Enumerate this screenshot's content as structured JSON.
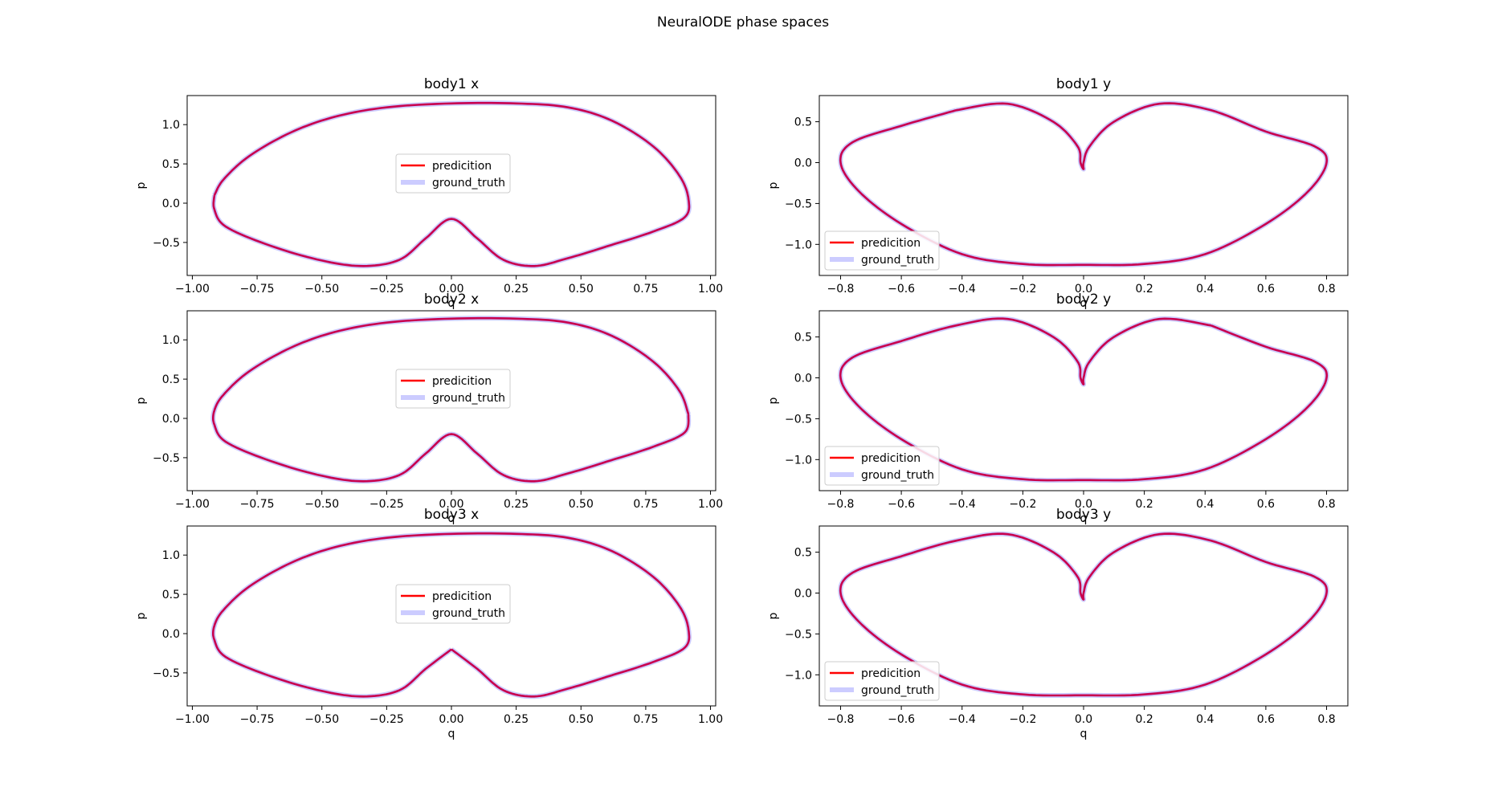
{
  "figure_title": "NeuralODE phase spaces",
  "colors": {
    "prediction": "#ff0000",
    "ground_truth": "#7f7fff",
    "overlap": "#c8004e"
  },
  "chart_data": [
    {
      "type": "line",
      "kind": "x",
      "title": "body1 x",
      "xlabel": "q",
      "ylabel": "p",
      "xlim": [
        -1.02,
        1.02
      ],
      "ylim": [
        -0.92,
        1.37
      ],
      "xticks": [
        -1.0,
        -0.75,
        -0.5,
        -0.25,
        0.0,
        0.25,
        0.5,
        0.75,
        1.0
      ],
      "xtick_labels": [
        "−1.00",
        "−0.75",
        "−0.50",
        "−0.25",
        "0.00",
        "0.25",
        "0.50",
        "0.75",
        "1.00"
      ],
      "yticks": [
        -0.5,
        0.0,
        0.5,
        1.0
      ],
      "ytick_labels": [
        "−0.5",
        "0.0",
        "0.5",
        "1.0"
      ],
      "legend": {
        "location": "center",
        "entries": [
          "predicition",
          "ground_truth"
        ]
      },
      "start": {
        "q": -0.915,
        "p": 0.1
      }
    },
    {
      "type": "line",
      "kind": "y",
      "title": "body1 y",
      "xlabel": "q",
      "ylabel": "p",
      "xlim": [
        -0.87,
        0.87
      ],
      "ylim": [
        -1.38,
        0.82
      ],
      "xticks": [
        -0.8,
        -0.6,
        -0.4,
        -0.2,
        0.0,
        0.2,
        0.4,
        0.6,
        0.8
      ],
      "xtick_labels": [
        "−0.8",
        "−0.6",
        "−0.4",
        "−0.2",
        "0.0",
        "0.2",
        "0.4",
        "0.6",
        "0.8"
      ],
      "yticks": [
        -1.0,
        -0.5,
        0.0,
        0.5
      ],
      "ytick_labels": [
        "−1.0",
        "−0.5",
        "0.0",
        "0.5"
      ],
      "legend": {
        "location": "lower left",
        "entries": [
          "predicition",
          "ground_truth"
        ]
      },
      "start": {
        "q": -0.42,
        "p": 0.64
      }
    },
    {
      "type": "line",
      "kind": "x",
      "title": "body2 x",
      "xlabel": "q",
      "ylabel": "p",
      "xlim": [
        -1.02,
        1.02
      ],
      "ylim": [
        -0.92,
        1.37
      ],
      "xticks": [
        -1.0,
        -0.75,
        -0.5,
        -0.25,
        0.0,
        0.25,
        0.5,
        0.75,
        1.0
      ],
      "xtick_labels": [
        "−1.00",
        "−0.75",
        "−0.50",
        "−0.25",
        "0.00",
        "0.25",
        "0.50",
        "0.75",
        "1.00"
      ],
      "yticks": [
        -0.5,
        0.0,
        0.5,
        1.0
      ],
      "ytick_labels": [
        "−0.5",
        "0.0",
        "0.5",
        "1.0"
      ],
      "legend": {
        "location": "center",
        "entries": [
          "predicition",
          "ground_truth"
        ]
      },
      "start": {
        "q": 0.915,
        "p": 0.1
      }
    },
    {
      "type": "line",
      "kind": "y",
      "title": "body2 y",
      "xlabel": "q",
      "ylabel": "p",
      "xlim": [
        -0.87,
        0.87
      ],
      "ylim": [
        -1.38,
        0.82
      ],
      "xticks": [
        -0.8,
        -0.6,
        -0.4,
        -0.2,
        0.0,
        0.2,
        0.4,
        0.6,
        0.8
      ],
      "xtick_labels": [
        "−0.8",
        "−0.6",
        "−0.4",
        "−0.2",
        "0.0",
        "0.2",
        "0.4",
        "0.6",
        "0.8"
      ],
      "yticks": [
        -1.0,
        -0.5,
        0.0,
        0.5
      ],
      "ytick_labels": [
        "−1.0",
        "−0.5",
        "0.0",
        "0.5"
      ],
      "legend": {
        "location": "lower left",
        "entries": [
          "predicition",
          "ground_truth"
        ]
      },
      "start": {
        "q": 0.42,
        "p": 0.64
      }
    },
    {
      "type": "line",
      "kind": "x",
      "title": "body3 x",
      "xlabel": "q",
      "ylabel": "p",
      "xlim": [
        -1.02,
        1.02
      ],
      "ylim": [
        -0.92,
        1.37
      ],
      "xticks": [
        -1.0,
        -0.75,
        -0.5,
        -0.25,
        0.0,
        0.25,
        0.5,
        0.75,
        1.0
      ],
      "xtick_labels": [
        "−1.00",
        "−0.75",
        "−0.50",
        "−0.25",
        "0.00",
        "0.25",
        "0.50",
        "0.75",
        "1.00"
      ],
      "yticks": [
        -0.5,
        0.0,
        0.5,
        1.0
      ],
      "ytick_labels": [
        "−0.5",
        "0.0",
        "0.5",
        "1.0"
      ],
      "legend": {
        "location": "center",
        "entries": [
          "predicition",
          "ground_truth"
        ]
      },
      "start": {
        "q": -0.01,
        "p": -0.2
      }
    },
    {
      "type": "line",
      "kind": "y",
      "title": "body3 y",
      "xlabel": "q",
      "ylabel": "p",
      "xlim": [
        -0.87,
        0.87
      ],
      "ylim": [
        -1.38,
        0.82
      ],
      "xticks": [
        -0.8,
        -0.6,
        -0.4,
        -0.2,
        0.0,
        0.2,
        0.4,
        0.6,
        0.8
      ],
      "xtick_labels": [
        "−0.8",
        "−0.6",
        "−0.4",
        "−0.2",
        "0.0",
        "0.2",
        "0.4",
        "0.6",
        "0.8"
      ],
      "yticks": [
        -1.0,
        -0.5,
        0.0,
        0.5
      ],
      "ytick_labels": [
        "−1.0",
        "−0.5",
        "0.0",
        "0.5"
      ],
      "legend": {
        "location": "lower left",
        "entries": [
          "predicition",
          "ground_truth"
        ]
      },
      "start": {
        "q": 0.0,
        "p": -1.25
      }
    }
  ]
}
